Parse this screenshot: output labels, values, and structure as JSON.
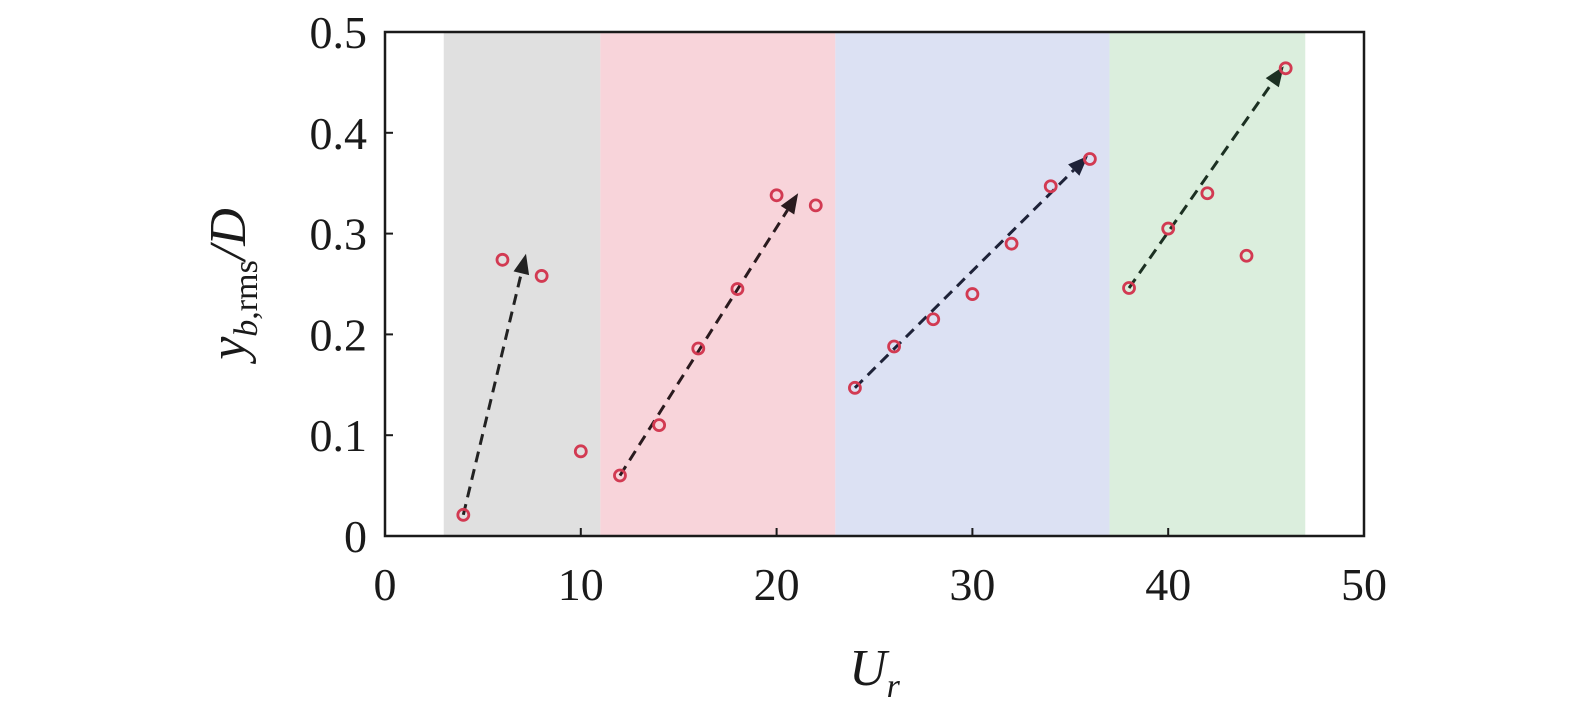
{
  "chart_data": {
    "type": "scatter",
    "title": "",
    "xlabel": {
      "base": "U",
      "sub": "r"
    },
    "ylabel": {
      "base": "y",
      "sub_italic": "b",
      "sub_roman": ",rms",
      "suffix": "/D"
    },
    "xlim": [
      0,
      50
    ],
    "ylim": [
      0,
      0.5
    ],
    "x_ticks": [
      0,
      10,
      20,
      30,
      40,
      50
    ],
    "y_ticks": [
      0,
      0.1,
      0.2,
      0.3,
      0.4,
      0.5
    ],
    "x_tick_labels": [
      "0",
      "10",
      "20",
      "30",
      "40",
      "50"
    ],
    "y_tick_labels": [
      "0",
      "0.1",
      "0.2",
      "0.3",
      "0.4",
      "0.5"
    ],
    "grid": false,
    "legend": "none",
    "regions": [
      {
        "x_start": 3.0,
        "x_end": 11.0,
        "color": "#e0e0e0"
      },
      {
        "x_start": 11.0,
        "x_end": 23.0,
        "color": "#f8d4da"
      },
      {
        "x_start": 23.0,
        "x_end": 37.0,
        "color": "#dce1f3"
      },
      {
        "x_start": 37.0,
        "x_end": 47.0,
        "color": "#dbeedd"
      }
    ],
    "series": [
      {
        "marker": "open-circle",
        "color": "#d23a52",
        "x": [
          4,
          6,
          8,
          10,
          12,
          14,
          16,
          18,
          20,
          22,
          24,
          26,
          28,
          30,
          32,
          34,
          36,
          38,
          40,
          42,
          44,
          46
        ],
        "y": [
          0.021,
          0.274,
          0.258,
          0.084,
          0.06,
          0.11,
          0.186,
          0.245,
          0.338,
          0.328,
          0.147,
          0.188,
          0.215,
          0.24,
          0.29,
          0.347,
          0.374,
          0.246,
          0.305,
          0.34,
          0.278,
          0.464
        ]
      }
    ],
    "arrows": [
      {
        "from": [
          4.0,
          0.021
        ],
        "to": [
          7.2,
          0.28
        ],
        "color": "#222222"
      },
      {
        "from": [
          12.0,
          0.06
        ],
        "to": [
          21.1,
          0.34
        ],
        "color": "#2a1a1e"
      },
      {
        "from": [
          24.0,
          0.147
        ],
        "to": [
          35.9,
          0.377
        ],
        "color": "#1e2238"
      },
      {
        "from": [
          38.0,
          0.246
        ],
        "to": [
          45.9,
          0.466
        ],
        "color": "#1c3022"
      }
    ]
  }
}
